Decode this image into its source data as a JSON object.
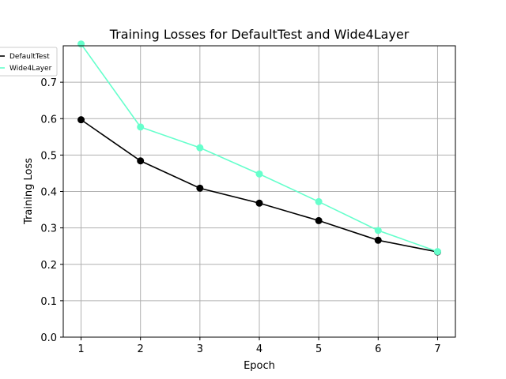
{
  "chart_data": {
    "type": "line",
    "title": "Training Losses for DefaultTest and Wide4Layer",
    "xlabel": "Epoch",
    "ylabel": "Training Loss",
    "x": [
      1,
      2,
      3,
      4,
      5,
      6,
      7
    ],
    "xlim": [
      0.7,
      7.3
    ],
    "ylim": [
      0.0,
      0.8
    ],
    "xticks": [
      1,
      2,
      3,
      4,
      5,
      6,
      7
    ],
    "yticks": [
      0.0,
      0.1,
      0.2,
      0.3,
      0.4,
      0.5,
      0.6,
      0.7
    ],
    "ytick_labels": [
      "0.0",
      "0.1",
      "0.2",
      "0.3",
      "0.4",
      "0.5",
      "0.6",
      "0.7"
    ],
    "grid": true,
    "legend": "top-left",
    "series": [
      {
        "name": "DefaultTest",
        "color": "#000000",
        "values": [
          0.597,
          0.484,
          0.409,
          0.368,
          0.32,
          0.266,
          0.234
        ]
      },
      {
        "name": "Wide4Layer",
        "color": "#66ffcc",
        "values": [
          0.805,
          0.577,
          0.52,
          0.448,
          0.372,
          0.293,
          0.235
        ]
      }
    ]
  }
}
